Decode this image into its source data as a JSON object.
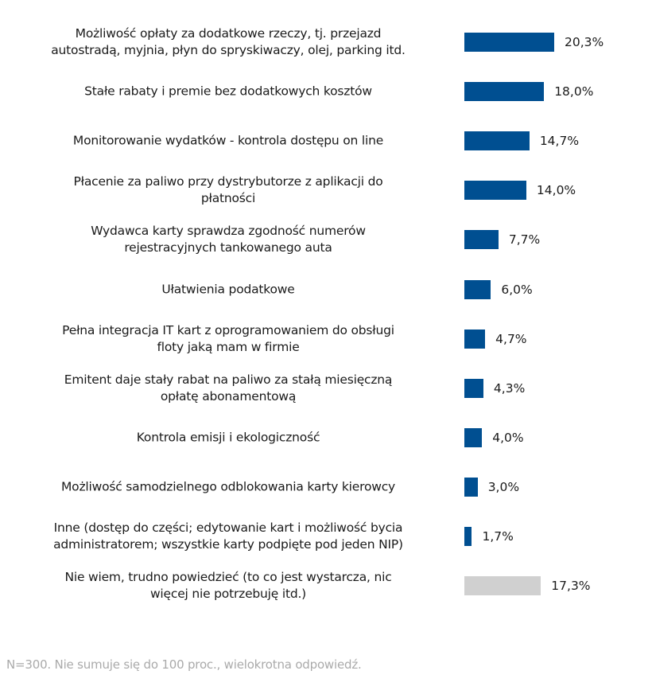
{
  "chart_data": {
    "type": "bar",
    "orientation": "horizontal",
    "categories": [
      "Możliwość opłaty za dodatkowe rzeczy, tj. przejazd autostradą, myjnia, płyn do spryskiwaczy, olej, parking itd.",
      "Stałe rabaty i premie bez dodatkowych kosztów",
      "Monitorowanie wydatków - kontrola dostępu on line",
      "Płacenie za paliwo przy dystrybutorze z aplikacji do płatności",
      "Wydawca karty sprawdza zgodność numerów rejestracyjnych tankowanego auta",
      "Ułatwienia podatkowe",
      "Pełna integracja IT kart z oprogramowaniem do obsługi floty jaką mam w firmie",
      "Emitent daje stały rabat na paliwo za stałą miesięczną opłatę abonamentową",
      "Kontrola emisji i ekologiczność",
      "Możliwość samodzielnego odblokowania karty kierowcy",
      "Inne (dostęp do części; edytowanie kart i możliwość bycia administratorem; wszystkie karty podpięte pod jeden NIP)",
      "Nie wiem, trudno powiedzieć (to co jest wystarcza, nic więcej nie potrzebuję itd.)"
    ],
    "label_lines": [
      [
        "Możliwość opłaty za dodatkowe rzeczy, tj. przejazd",
        "autostradą, myjnia, płyn do spryskiwaczy, olej, parking itd."
      ],
      [
        "Stałe rabaty i premie bez dodatkowych kosztów"
      ],
      [
        "Monitorowanie wydatków - kontrola dostępu on line"
      ],
      [
        "Płacenie za paliwo przy dystrybutorze z aplikacji do",
        "płatności"
      ],
      [
        "Wydawca karty sprawdza zgodność numerów",
        "rejestracyjnych tankowanego auta"
      ],
      [
        "Ułatwienia podatkowe"
      ],
      [
        "Pełna integracja IT kart z oprogramowaniem do obsługi",
        "floty jaką mam w firmie"
      ],
      [
        "Emitent daje stały rabat na paliwo za stałą miesięczną",
        "opłatę abonamentową"
      ],
      [
        "Kontrola emisji i ekologiczność"
      ],
      [
        "Możliwość samodzielnego odblokowania karty kierowcy"
      ],
      [
        "Inne (dostęp do części; edytowanie kart i możliwość bycia",
        "administratorem; wszystkie karty podpięte pod jeden NIP)"
      ],
      [
        "Nie wiem, trudno powiedzieć (to co jest wystarcza, nic",
        "więcej nie potrzebuję itd.)"
      ]
    ],
    "values": [
      20.3,
      18.0,
      14.7,
      14.0,
      7.7,
      6.0,
      4.7,
      4.3,
      4.0,
      3.0,
      1.7,
      17.3
    ],
    "value_labels": [
      "20,3%",
      "18,0%",
      "14,7%",
      "14,0%",
      "7,7%",
      "6,0%",
      "4,7%",
      "4,3%",
      "4,0%",
      "3,0%",
      "1,7%",
      "17,3%"
    ],
    "bar_colors": [
      "#004f91",
      "#004f91",
      "#004f91",
      "#004f91",
      "#004f91",
      "#004f91",
      "#004f91",
      "#004f91",
      "#004f91",
      "#004f91",
      "#004f91",
      "#d0d0d0"
    ],
    "unit": "%",
    "xlim": [
      0,
      20.3
    ],
    "grid": false,
    "legend": "none",
    "title": "",
    "xlabel": "",
    "ylabel": ""
  },
  "footnote": "N=300. Nie sumuje się do 100 proc., wielokrotna odpowiedź."
}
